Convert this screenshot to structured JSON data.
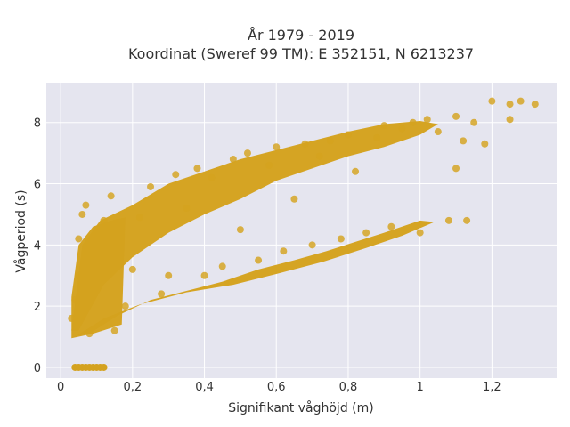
{
  "chart_data": {
    "type": "scatter",
    "title_line1": "År 1979 - 2019",
    "title_line2": "Koordinat (Sweref 99 TM): E 352151, N 6213237",
    "xlabel": "Signifikant våghöjd (m)",
    "ylabel": "Vågperiod (s)",
    "xlim": [
      -0.04,
      1.38
    ],
    "ylim": [
      -0.35,
      9.3
    ],
    "x_ticks": [
      0,
      0.2,
      0.4,
      0.6,
      0.8,
      1.0,
      1.2
    ],
    "x_tick_labels": [
      "0",
      "0,2",
      "0,4",
      "0,6",
      "0,8",
      "1",
      "1,2"
    ],
    "y_ticks": [
      0,
      2,
      4,
      6,
      8
    ],
    "y_tick_labels": [
      "0",
      "2",
      "4",
      "6",
      "8"
    ],
    "grid": true,
    "background_color": "#e5e5ef",
    "marker_color": "#d4a21f",
    "series": [
      {
        "values_note": "dense band",
        "points": [
          [
            0.03,
            1.6
          ],
          [
            0.04,
            2.2
          ],
          [
            0.05,
            3.0
          ],
          [
            0.05,
            4.2
          ],
          [
            0.06,
            5.0
          ],
          [
            0.07,
            5.3
          ],
          [
            0.08,
            1.1
          ],
          [
            0.09,
            2.5
          ],
          [
            0.1,
            3.3
          ],
          [
            0.12,
            4.8
          ],
          [
            0.14,
            5.6
          ],
          [
            0.15,
            1.2
          ],
          [
            0.18,
            2.0
          ],
          [
            0.2,
            3.2
          ],
          [
            0.22,
            4.9
          ],
          [
            0.25,
            5.9
          ],
          [
            0.28,
            2.4
          ],
          [
            0.3,
            3.0
          ],
          [
            0.32,
            6.3
          ],
          [
            0.35,
            5.2
          ],
          [
            0.38,
            6.5
          ],
          [
            0.4,
            3.0
          ],
          [
            0.42,
            6.2
          ],
          [
            0.45,
            3.3
          ],
          [
            0.48,
            6.8
          ],
          [
            0.5,
            4.5
          ],
          [
            0.52,
            7.0
          ],
          [
            0.55,
            3.5
          ],
          [
            0.58,
            6.6
          ],
          [
            0.6,
            7.2
          ],
          [
            0.62,
            3.8
          ],
          [
            0.65,
            5.5
          ],
          [
            0.68,
            7.3
          ],
          [
            0.7,
            4.0
          ],
          [
            0.72,
            6.9
          ],
          [
            0.75,
            7.4
          ],
          [
            0.78,
            4.2
          ],
          [
            0.8,
            7.6
          ],
          [
            0.82,
            6.4
          ],
          [
            0.85,
            4.4
          ],
          [
            0.88,
            7.5
          ],
          [
            0.9,
            7.9
          ],
          [
            0.92,
            4.6
          ],
          [
            0.95,
            7.8
          ],
          [
            0.98,
            8.0
          ],
          [
            1.0,
            4.4
          ],
          [
            1.02,
            8.1
          ],
          [
            1.05,
            7.7
          ],
          [
            1.08,
            4.8
          ],
          [
            1.1,
            8.2
          ],
          [
            1.12,
            7.4
          ],
          [
            1.15,
            8.0
          ],
          [
            1.18,
            7.3
          ],
          [
            1.2,
            8.7
          ],
          [
            1.25,
            8.6
          ],
          [
            1.28,
            8.7
          ],
          [
            1.32,
            8.6
          ],
          [
            1.25,
            8.1
          ],
          [
            1.13,
            4.8
          ],
          [
            1.1,
            6.5
          ]
        ]
      },
      {
        "values_note": "zero period cluster",
        "points": [
          [
            0.04,
            0
          ],
          [
            0.05,
            0
          ],
          [
            0.06,
            0
          ],
          [
            0.07,
            0
          ],
          [
            0.08,
            0
          ],
          [
            0.09,
            0
          ],
          [
            0.1,
            0
          ],
          [
            0.11,
            0
          ],
          [
            0.12,
            0
          ]
        ]
      }
    ]
  }
}
